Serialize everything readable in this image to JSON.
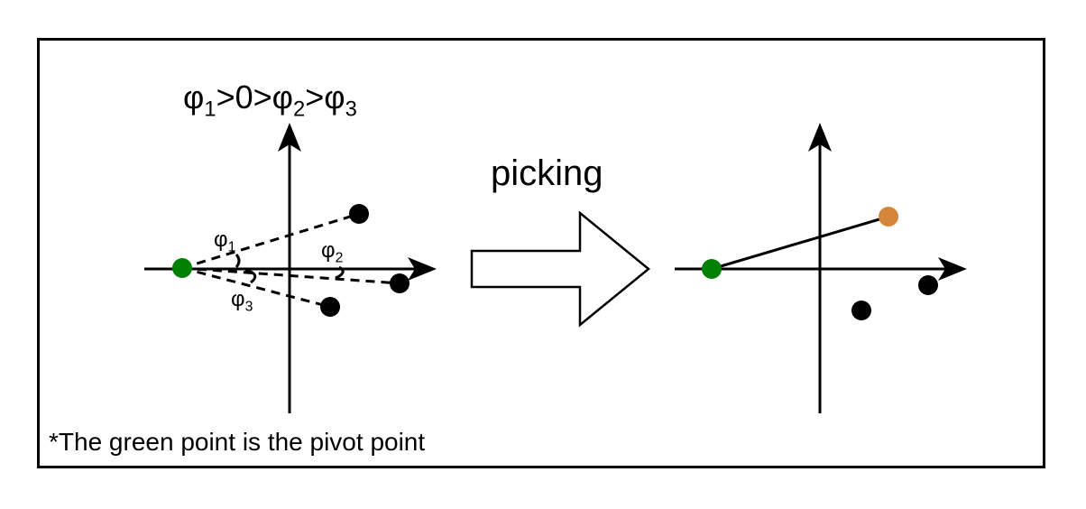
{
  "title": {
    "phi1": "φ",
    "s1": "1",
    "gt1": ">0>",
    "phi2": "φ",
    "s2": "2",
    "gt2": ">",
    "phi3": "φ",
    "s3": "3"
  },
  "angle_labels": {
    "a1": {
      "phi": "φ",
      "sub": "1"
    },
    "a2": {
      "phi": "φ",
      "sub": "2"
    },
    "a3": {
      "phi": "φ",
      "sub": "3"
    }
  },
  "action_label": "picking",
  "footnote": "*The green point is the pivot point",
  "colors": {
    "pivot": "#008000",
    "picked": "#d4873a",
    "point": "#000000",
    "line": "#000000"
  }
}
